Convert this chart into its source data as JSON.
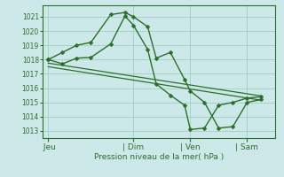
{
  "background_color": "#cce8e8",
  "grid_color": "#99ccbb",
  "line_color": "#2d6e2d",
  "marker_color": "#2d6e2d",
  "ylim": [
    1012.5,
    1021.8
  ],
  "yticks": [
    1013,
    1014,
    1015,
    1016,
    1017,
    1018,
    1019,
    1020,
    1021
  ],
  "xlabel": "Pression niveau de la mer( hPa )",
  "xtick_labels": [
    " Jeu",
    "| Dim",
    "| Ven",
    "| Sam"
  ],
  "xtick_positions": [
    0.0,
    3.0,
    5.0,
    7.0
  ],
  "xlim": [
    -0.2,
    8.0
  ],
  "series": [
    {
      "x": [
        0,
        0.5,
        1.0,
        1.5,
        2.2,
        2.7,
        3.0,
        3.5,
        3.8,
        4.3,
        4.8,
        5.0,
        5.5,
        6.0,
        6.5,
        7.0,
        7.5
      ],
      "y": [
        1018.0,
        1018.5,
        1019.0,
        1019.2,
        1021.15,
        1021.3,
        1021.0,
        1020.3,
        1018.1,
        1018.5,
        1016.6,
        1015.8,
        1015.0,
        1013.2,
        1013.3,
        1015.0,
        1015.2
      ],
      "has_marker": true,
      "markersize": 2.5,
      "linewidth": 1.0
    },
    {
      "x": [
        0,
        0.5,
        1.0,
        1.5,
        2.2,
        2.7,
        3.0,
        3.5,
        3.8,
        4.3,
        4.8,
        5.0,
        5.5,
        6.0,
        6.5,
        7.0,
        7.5
      ],
      "y": [
        1018.0,
        1017.7,
        1018.1,
        1018.15,
        1019.1,
        1021.05,
        1020.4,
        1018.7,
        1016.3,
        1015.5,
        1014.8,
        1013.1,
        1013.2,
        1014.8,
        1015.0,
        1015.3,
        1015.4
      ],
      "has_marker": true,
      "markersize": 2.5,
      "linewidth": 1.0
    },
    {
      "x": [
        0,
        7.5
      ],
      "y": [
        1017.75,
        1015.45
      ],
      "has_marker": false,
      "markersize": 0,
      "linewidth": 0.9
    },
    {
      "x": [
        0,
        7.5
      ],
      "y": [
        1017.5,
        1015.15
      ],
      "has_marker": false,
      "markersize": 0,
      "linewidth": 0.9
    }
  ]
}
